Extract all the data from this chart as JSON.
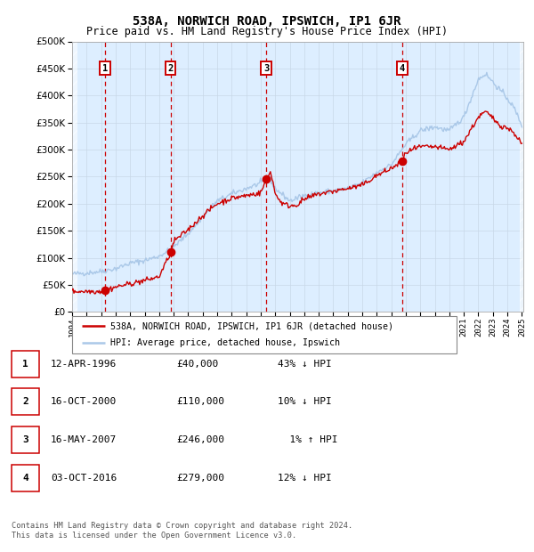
{
  "title": "538A, NORWICH ROAD, IPSWICH, IP1 6JR",
  "subtitle": "Price paid vs. HM Land Registry's House Price Index (HPI)",
  "legend_line1": "538A, NORWICH ROAD, IPSWICH, IP1 6JR (detached house)",
  "legend_line2": "HPI: Average price, detached house, Ipswich",
  "footer1": "Contains HM Land Registry data © Crown copyright and database right 2024.",
  "footer2": "This data is licensed under the Open Government Licence v3.0.",
  "hpi_color": "#aac8e8",
  "price_color": "#cc0000",
  "dot_color": "#cc0000",
  "vline_color": "#cc0000",
  "grid_color": "#c8d8e8",
  "bg_color": "#ddeeff",
  "ylim": [
    0,
    500000
  ],
  "yticks": [
    0,
    50000,
    100000,
    150000,
    200000,
    250000,
    300000,
    350000,
    400000,
    450000,
    500000
  ],
  "sale_points": [
    {
      "label": "1",
      "date": "12-APR-1996",
      "year": 1996.28,
      "price": 40000
    },
    {
      "label": "2",
      "date": "16-OCT-2000",
      "year": 2000.79,
      "price": 110000
    },
    {
      "label": "3",
      "date": "16-MAY-2007",
      "year": 2007.37,
      "price": 246000
    },
    {
      "label": "4",
      "date": "03-OCT-2016",
      "year": 2016.75,
      "price": 279000
    }
  ],
  "table_rows": [
    {
      "num": "1",
      "date": "12-APR-1996",
      "price": "£40,000",
      "rel": "43% ↓ HPI"
    },
    {
      "num": "2",
      "date": "16-OCT-2000",
      "price": "£110,000",
      "rel": "10% ↓ HPI"
    },
    {
      "num": "3",
      "date": "16-MAY-2007",
      "price": "£246,000",
      "rel": "  1% ↑ HPI"
    },
    {
      "num": "4",
      "date": "03-OCT-2016",
      "price": "£279,000",
      "rel": "12% ↓ HPI"
    }
  ]
}
